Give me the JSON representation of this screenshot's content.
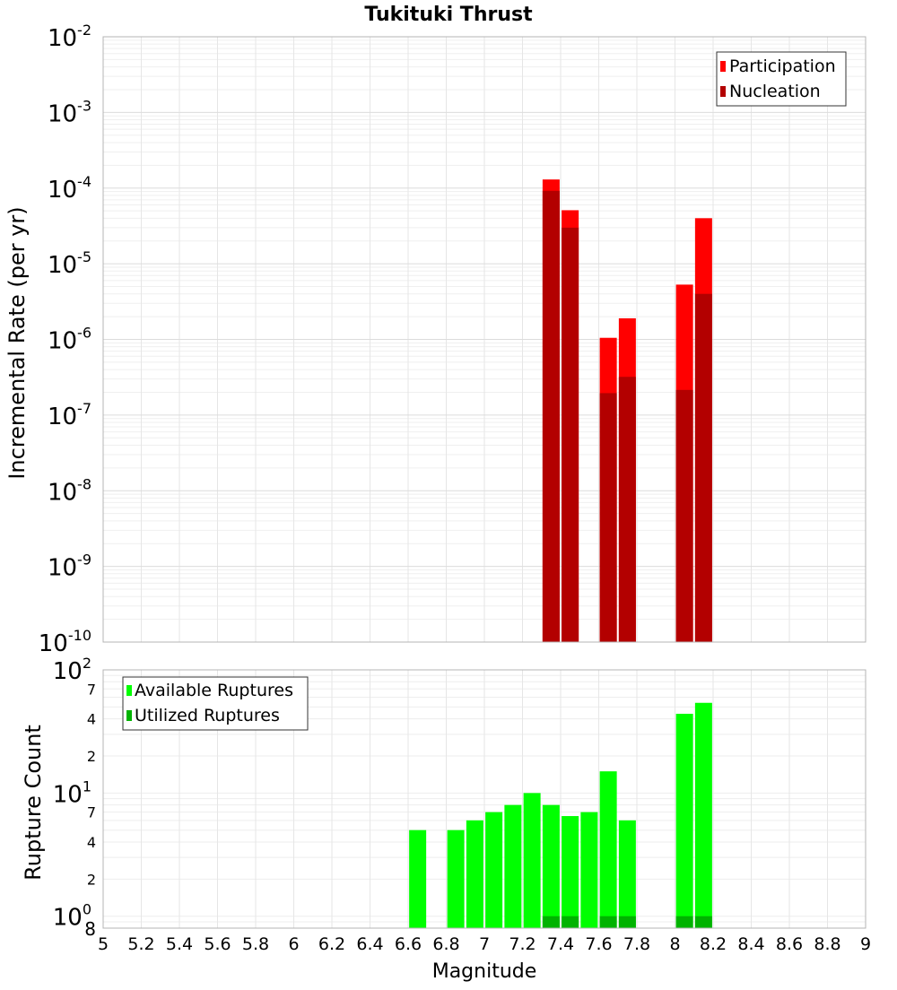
{
  "title": "Tukituki Thrust",
  "xlabel": "Magnitude",
  "chart_data": [
    {
      "type": "bar",
      "title": "Tukituki Thrust",
      "xlabel": "Magnitude",
      "ylabel": "Incremental Rate (per yr)",
      "yscale": "log",
      "xlim": [
        5,
        9
      ],
      "ylim": [
        1e-10,
        0.01
      ],
      "y_tick_exponents": [
        -10,
        -9,
        -8,
        -7,
        -6,
        -5,
        -4,
        -3,
        -2
      ],
      "x_ticks": [
        "5",
        "5.2",
        "5.4",
        "5.6",
        "5.8",
        "6",
        "6.2",
        "6.4",
        "6.6",
        "6.8",
        "7",
        "7.2",
        "7.4",
        "7.6",
        "7.8",
        "8",
        "8.2",
        "8.4",
        "8.6",
        "8.8",
        "9"
      ],
      "legend": {
        "placement": "top-right"
      },
      "grid": true,
      "series": [
        {
          "name": "Participation",
          "color": "#ff0000",
          "x": [
            7.35,
            7.45,
            7.65,
            7.75,
            8.05,
            8.15
          ],
          "values": [
            0.00013,
            5.1e-05,
            1.05e-06,
            1.9e-06,
            5.3e-06,
            4e-05
          ]
        },
        {
          "name": "Nucleation",
          "color": "#b30000",
          "x": [
            7.35,
            7.45,
            7.65,
            7.75,
            8.05,
            8.15
          ],
          "values": [
            9.2e-05,
            3e-05,
            1.95e-07,
            3.2e-07,
            2.15e-07,
            4e-06
          ]
        }
      ]
    },
    {
      "type": "bar",
      "xlabel": "Magnitude",
      "ylabel": "Rupture Count",
      "yscale": "log",
      "xlim": [
        5,
        9
      ],
      "ylim": [
        0.8,
        100
      ],
      "y_major_ticks": [
        {
          "value": 1,
          "base": "10",
          "exp": "0"
        },
        {
          "value": 10,
          "base": "10",
          "exp": "1"
        },
        {
          "value": 100,
          "base": "10",
          "exp": "2"
        }
      ],
      "y_minor_ticks": [
        {
          "value": 0.8,
          "label": "8"
        },
        {
          "value": 2,
          "label": "2"
        },
        {
          "value": 4,
          "label": "4"
        },
        {
          "value": 7,
          "label": "7"
        },
        {
          "value": 20,
          "label": "2"
        },
        {
          "value": 40,
          "label": "4"
        },
        {
          "value": 70,
          "label": "7"
        }
      ],
      "x_ticks": [
        "5",
        "5.2",
        "5.4",
        "5.6",
        "5.8",
        "6",
        "6.2",
        "6.4",
        "6.6",
        "6.8",
        "7",
        "7.2",
        "7.4",
        "7.6",
        "7.8",
        "8",
        "8.2",
        "8.4",
        "8.6",
        "8.8",
        "9"
      ],
      "legend": {
        "placement": "top-left"
      },
      "grid": true,
      "series": [
        {
          "name": "Available Ruptures",
          "color": "#00ff00",
          "x": [
            6.65,
            6.85,
            6.95,
            7.05,
            7.15,
            7.25,
            7.35,
            7.45,
            7.55,
            7.65,
            7.75,
            8.05,
            8.15
          ],
          "values": [
            5,
            5,
            6,
            7,
            8,
            10,
            8,
            6.5,
            7,
            15,
            6,
            44,
            54
          ]
        },
        {
          "name": "Utilized Ruptures",
          "color": "#00b300",
          "x": [
            7.35,
            7.45,
            7.65,
            7.75,
            8.05,
            8.15
          ],
          "values": [
            1,
            1,
            1,
            1,
            1,
            1
          ]
        }
      ]
    }
  ]
}
